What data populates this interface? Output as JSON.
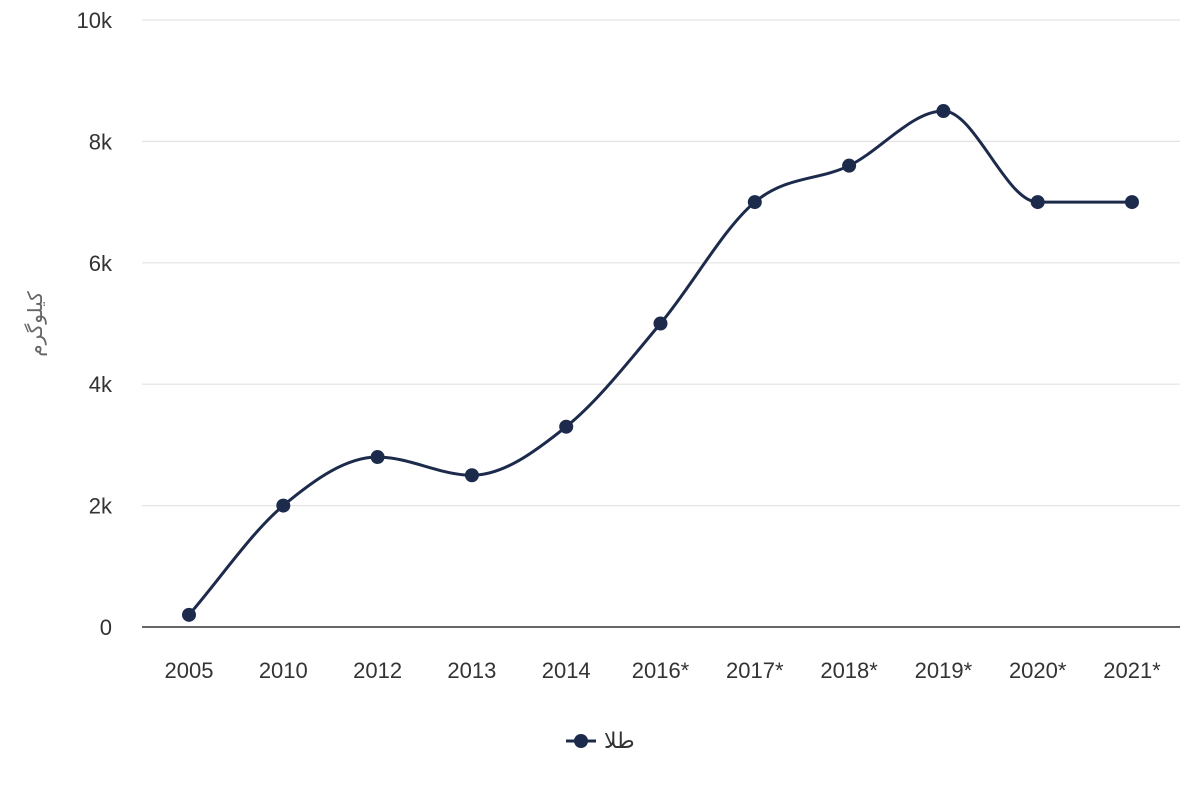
{
  "chart_data": {
    "type": "line",
    "categories": [
      "2005",
      "2010",
      "2012",
      "2013",
      "2014",
      "2016*",
      "2017*",
      "2018*",
      "2019*",
      "2020*",
      "2021*"
    ],
    "series": [
      {
        "name": "طلا",
        "color": "#1c2a4c",
        "values": [
          200,
          2000,
          2800,
          2500,
          3300,
          5000,
          7000,
          7600,
          8500,
          7000,
          7000
        ]
      }
    ],
    "ylabel": "کیلوگرم",
    "ylim": [
      0,
      10000
    ],
    "yticks": [
      0,
      2000,
      4000,
      6000,
      8000,
      10000
    ],
    "ytick_labels": [
      "0",
      "2k",
      "4k",
      "6k",
      "8k",
      "10k"
    ],
    "grid": true,
    "legend": "bottom-center"
  }
}
